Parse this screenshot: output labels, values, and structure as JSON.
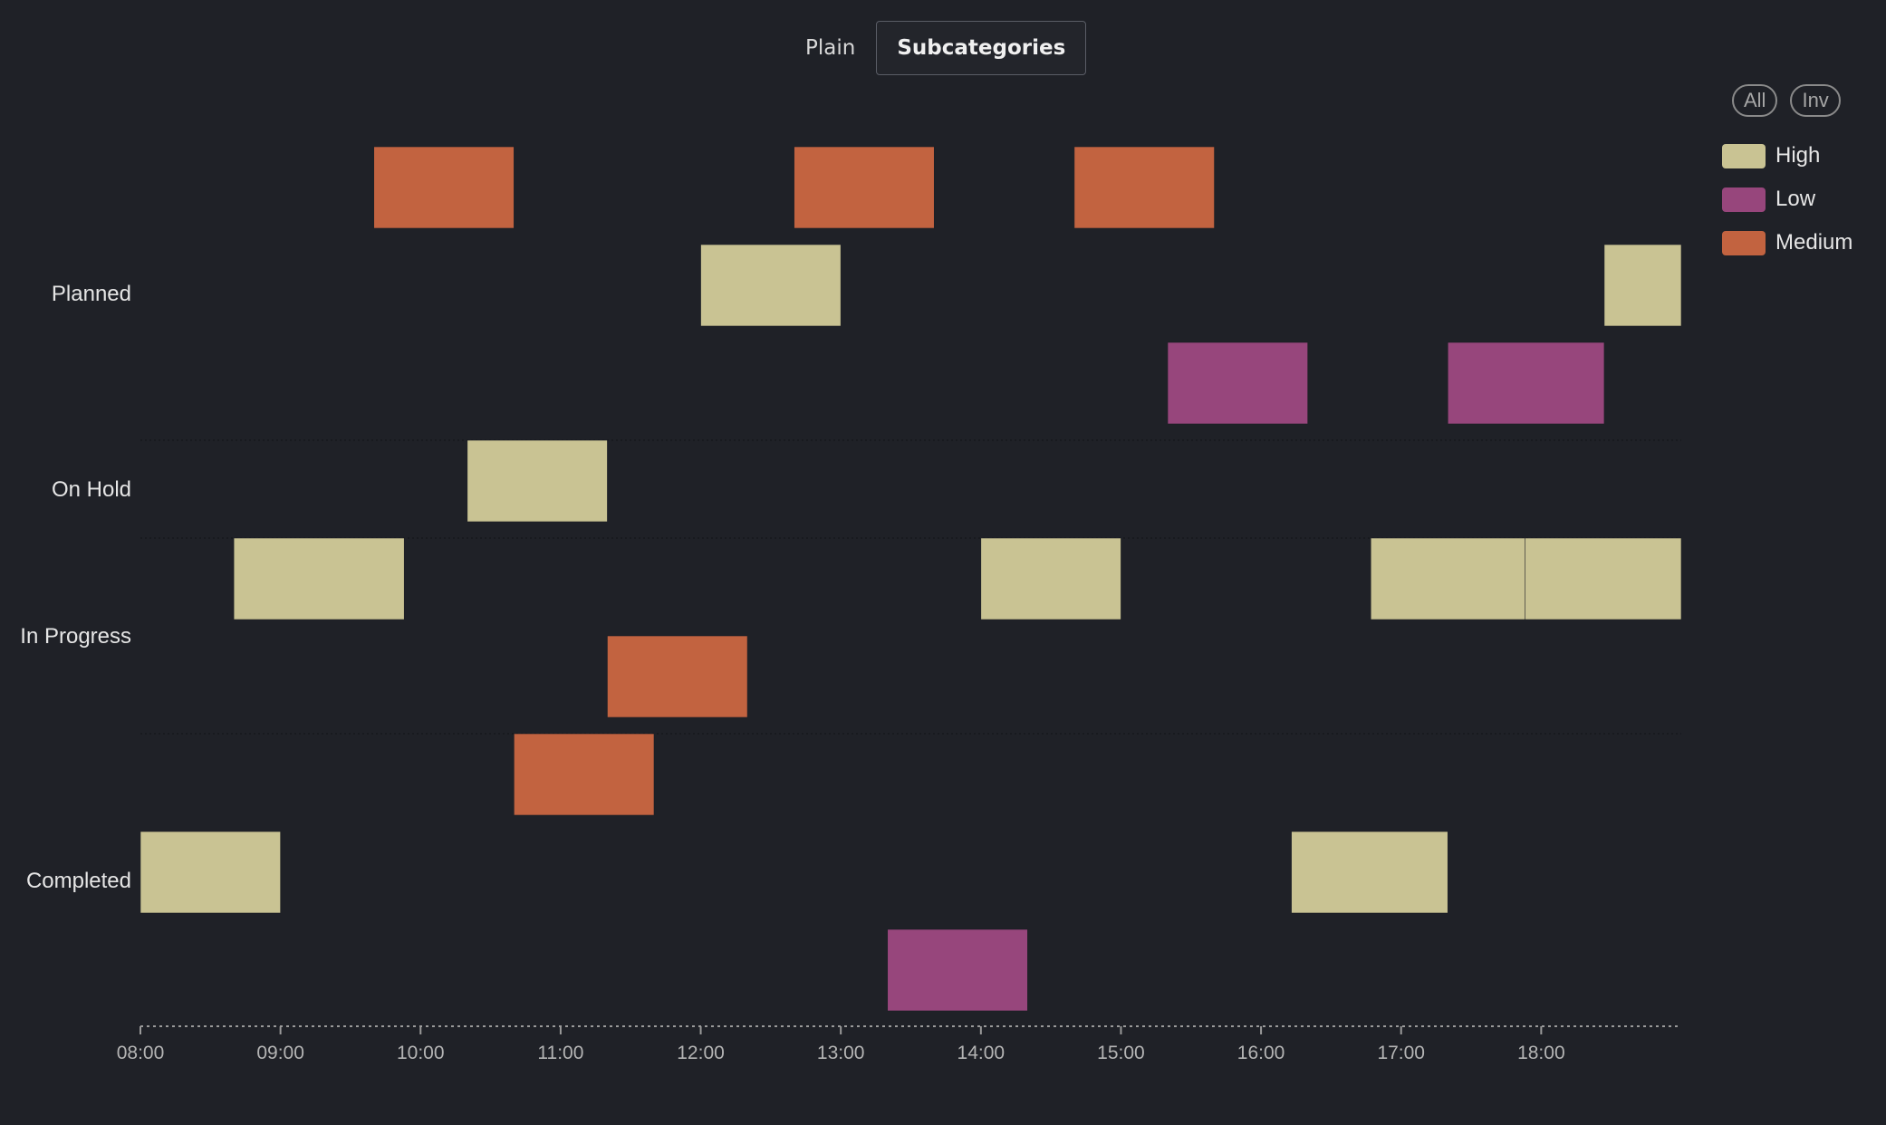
{
  "toggle": {
    "plain_label": "Plain",
    "subcategories_label": "Subcategories",
    "active": "Subcategories"
  },
  "legend": {
    "all_label": "All",
    "inv_label": "Inv",
    "items": [
      {
        "label": "High",
        "color": "#c9c393"
      },
      {
        "label": "Low",
        "color": "#97467c"
      },
      {
        "label": "Medium",
        "color": "#c26340"
      }
    ]
  },
  "chart_data": {
    "type": "timeline",
    "x_ticks": [
      "08:00",
      "09:00",
      "10:00",
      "11:00",
      "12:00",
      "13:00",
      "14:00",
      "15:00",
      "16:00",
      "17:00",
      "18:00"
    ],
    "xlim": [
      "08:00",
      "19:00"
    ],
    "categories": [
      "Planned",
      "On Hold",
      "In Progress",
      "Completed"
    ],
    "lanes_per_category": [
      3,
      1,
      2,
      3
    ],
    "tasks": [
      {
        "category": "Planned",
        "lane": 0,
        "priority": "Medium",
        "start": "09:40",
        "end": "10:40"
      },
      {
        "category": "Planned",
        "lane": 0,
        "priority": "Medium",
        "start": "12:40",
        "end": "13:40"
      },
      {
        "category": "Planned",
        "lane": 0,
        "priority": "Medium",
        "start": "14:40",
        "end": "15:40"
      },
      {
        "category": "Planned",
        "lane": 1,
        "priority": "High",
        "start": "12:00",
        "end": "13:00"
      },
      {
        "category": "Planned",
        "lane": 1,
        "priority": "High",
        "start": "18:27",
        "end": "19:00"
      },
      {
        "category": "Planned",
        "lane": 2,
        "priority": "Low",
        "start": "15:20",
        "end": "16:20"
      },
      {
        "category": "Planned",
        "lane": 2,
        "priority": "Low",
        "start": "17:20",
        "end": "18:27"
      },
      {
        "category": "On Hold",
        "lane": 0,
        "priority": "High",
        "start": "10:20",
        "end": "11:20"
      },
      {
        "category": "In Progress",
        "lane": 0,
        "priority": "High",
        "start": "08:40",
        "end": "09:53"
      },
      {
        "category": "In Progress",
        "lane": 0,
        "priority": "High",
        "start": "14:00",
        "end": "15:00"
      },
      {
        "category": "In Progress",
        "lane": 0,
        "priority": "High",
        "start": "16:47",
        "end": "17:53"
      },
      {
        "category": "In Progress",
        "lane": 0,
        "priority": "High",
        "start": "17:53",
        "end": "19:00"
      },
      {
        "category": "In Progress",
        "lane": 1,
        "priority": "Medium",
        "start": "11:20",
        "end": "12:20"
      },
      {
        "category": "Completed",
        "lane": 0,
        "priority": "Medium",
        "start": "10:40",
        "end": "11:40"
      },
      {
        "category": "Completed",
        "lane": 1,
        "priority": "High",
        "start": "08:00",
        "end": "09:00"
      },
      {
        "category": "Completed",
        "lane": 1,
        "priority": "High",
        "start": "16:13",
        "end": "17:20"
      },
      {
        "category": "Completed",
        "lane": 2,
        "priority": "Low",
        "start": "13:20",
        "end": "14:20"
      }
    ]
  }
}
